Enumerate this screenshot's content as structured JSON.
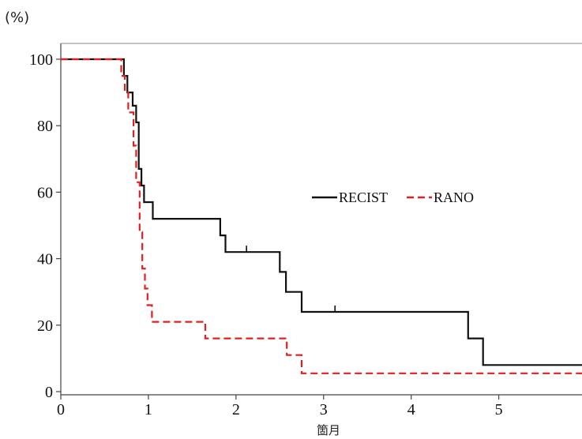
{
  "chart_data": {
    "type": "line",
    "title": "",
    "xlabel": "箇月",
    "ylabel": "(%)",
    "xlim": [
      0,
      5.95
    ],
    "ylim": [
      0,
      100
    ],
    "x_ticks": [
      0,
      1,
      2,
      3,
      4,
      5
    ],
    "y_ticks": [
      0,
      20,
      40,
      60,
      80,
      100
    ],
    "grid": false,
    "legend_position": "middle-right",
    "series": [
      {
        "name": "RECIST",
        "color": "#111111",
        "line_style": "solid",
        "step": true,
        "points": [
          [
            0,
            100
          ],
          [
            0.72,
            100
          ],
          [
            0.72,
            95
          ],
          [
            0.76,
            95
          ],
          [
            0.76,
            90
          ],
          [
            0.82,
            90
          ],
          [
            0.82,
            86
          ],
          [
            0.86,
            86
          ],
          [
            0.86,
            81
          ],
          [
            0.89,
            81
          ],
          [
            0.89,
            67
          ],
          [
            0.92,
            67
          ],
          [
            0.92,
            62
          ],
          [
            0.95,
            62
          ],
          [
            0.95,
            57
          ],
          [
            1.05,
            57
          ],
          [
            1.05,
            52
          ],
          [
            1.82,
            52
          ],
          [
            1.82,
            47
          ],
          [
            1.88,
            47
          ],
          [
            1.88,
            42
          ],
          [
            2.5,
            42
          ],
          [
            2.5,
            36
          ],
          [
            2.57,
            36
          ],
          [
            2.57,
            30
          ],
          [
            2.75,
            30
          ],
          [
            2.75,
            24
          ],
          [
            4.65,
            24
          ],
          [
            4.65,
            16
          ],
          [
            4.82,
            16
          ],
          [
            4.82,
            8
          ],
          [
            5.95,
            8
          ]
        ],
        "censor_marks": [
          [
            2.12,
            42
          ],
          [
            3.13,
            24
          ]
        ]
      },
      {
        "name": "RANO",
        "color": "#e02020",
        "line_style": "dashed",
        "step": true,
        "points": [
          [
            0,
            100
          ],
          [
            0.69,
            100
          ],
          [
            0.69,
            95
          ],
          [
            0.73,
            95
          ],
          [
            0.73,
            90
          ],
          [
            0.77,
            90
          ],
          [
            0.77,
            84
          ],
          [
            0.83,
            84
          ],
          [
            0.83,
            74
          ],
          [
            0.86,
            74
          ],
          [
            0.86,
            63
          ],
          [
            0.9,
            63
          ],
          [
            0.9,
            48
          ],
          [
            0.93,
            48
          ],
          [
            0.93,
            37
          ],
          [
            0.96,
            37
          ],
          [
            0.96,
            31
          ],
          [
            0.99,
            31
          ],
          [
            0.99,
            26
          ],
          [
            1.04,
            26
          ],
          [
            1.04,
            21
          ],
          [
            1.65,
            21
          ],
          [
            1.65,
            16
          ],
          [
            2.58,
            16
          ],
          [
            2.58,
            11
          ],
          [
            2.75,
            11
          ],
          [
            2.75,
            5.5
          ],
          [
            5.95,
            5.5
          ]
        ],
        "censor_marks": []
      }
    ]
  }
}
